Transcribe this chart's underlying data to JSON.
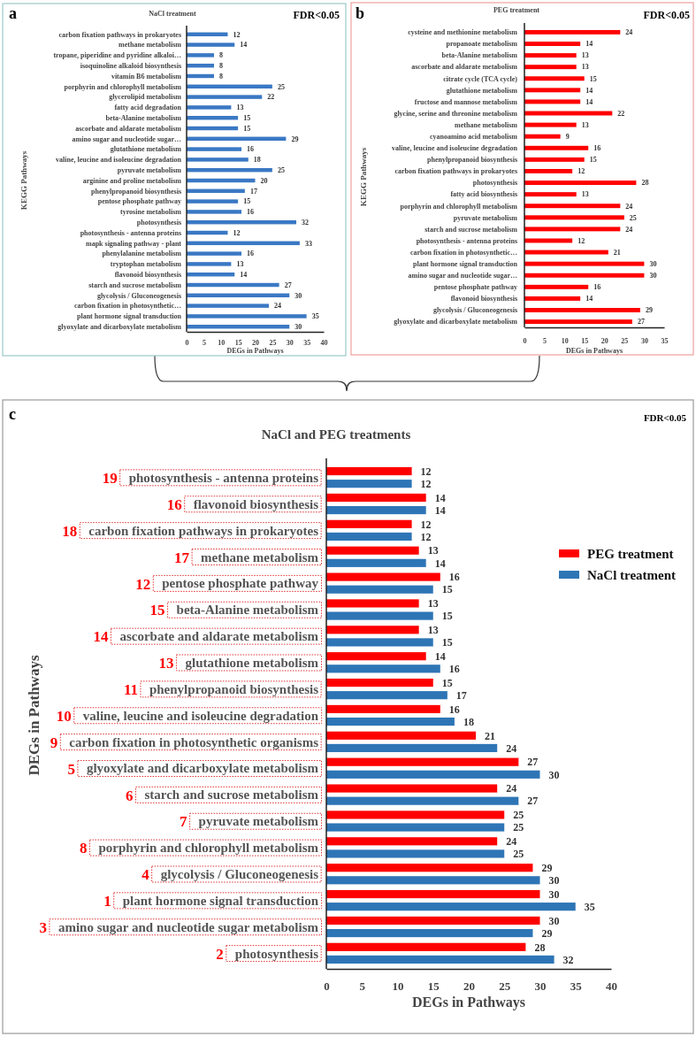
{
  "chart_data": [
    {
      "type": "bar",
      "orientation": "horizontal",
      "title": "NaCl treatment",
      "xlabel": "DEGs in Pathways",
      "ylabel": "KEGG Pathways",
      "annotations": [
        "a",
        "FDR<0.05"
      ],
      "categories": [
        "carbon fixation pathways in prokaryotes",
        "methane metabolism",
        "tropane, piperidine and pyridine alkaloi…",
        "isoquinoline alkaloid biosynthesis",
        "vitamin B6 metabolism",
        "porphyrin and chlorophyll metabolism",
        "glycerolipid metabolism",
        "fatty acid degradation",
        "beta-Alanine metabolism",
        "ascorbate and aldarate metabolism",
        "amino sugar and nucleotide sugar…",
        "glutathione metabolism",
        "valine, leucine and isoleucine degradation",
        "pyruvate metabolism",
        "arginine and proline metabolism",
        "phenylpropanoid biosynthesis",
        "pentose phosphate pathway",
        "tyrosine metabolism",
        "photosynthesis",
        "photosynthesis - antenna proteins",
        "mapk signaling pathway - plant",
        "phenylalanine metabolism",
        "tryptophan metabolism",
        "flavonoid biosynthesis",
        "starch and sucrose metabolism",
        "glycolysis / Gluconeogenesis",
        "carbon fixation in photosynthetic…",
        "plant hormone signal transduction",
        "glyoxylate and dicarboxylate metabolism"
      ],
      "series": [
        {
          "color": "#3a78c4",
          "values": [
            12,
            14,
            8,
            8,
            8,
            25,
            22,
            13,
            15,
            15,
            29,
            16,
            18,
            25,
            20,
            17,
            15,
            16,
            32,
            12,
            33,
            16,
            13,
            14,
            27,
            30,
            24,
            35,
            30
          ]
        }
      ],
      "xlim": [
        0,
        40
      ],
      "xticks": [
        0,
        5,
        10,
        15,
        20,
        25,
        30,
        35,
        40
      ],
      "data_labels": true
    },
    {
      "type": "bar",
      "orientation": "horizontal",
      "title": "PEG treatment",
      "xlabel": "DEGs in Pathways",
      "ylabel": "KEGG Pathways",
      "annotations": [
        "b",
        "FDR<0.05"
      ],
      "categories": [
        "cysteine and methionine metabolism",
        "propanoate metabolism",
        "beta-Alanine metabolism",
        "ascorbate and aldarate metabolism",
        "citrate cycle (TCA cycle)",
        "glutathione metabolism",
        "fructose and mannose metabolism",
        "glycine, serine and threonine metabolism",
        "methane metabolism",
        "cyanoamino acid metabolism",
        "valine, leucine and isoleucine degradation",
        "phenylpropanoid biosynthesis",
        "carbon fixation pathways in prokaryotes",
        "photosynthesis",
        "fatty acid biosynthesis",
        "porphyrin and chlorophyll metabolism",
        "pyruvate metabolism",
        "starch and sucrose metabolism",
        "photosynthesis - antenna proteins",
        "carbon fixation in photosynthetic…",
        "plant hormone signal transduction",
        "amino sugar and nucleotide sugar…",
        "pentose phosphate pathway",
        "flavonoid biosynthesis",
        "glycolysis / Gluconeogenesis",
        "glyoxylate and dicarboxylate metabolism"
      ],
      "series": [
        {
          "color": "#ff0000",
          "values": [
            24,
            14,
            13,
            13,
            15,
            14,
            14,
            22,
            13,
            9,
            16,
            15,
            12,
            28,
            13,
            24,
            25,
            24,
            12,
            21,
            30,
            30,
            16,
            14,
            29,
            27
          ]
        }
      ],
      "xlim": [
        0,
        35
      ],
      "xticks": [
        0,
        5,
        10,
        15,
        20,
        25,
        30,
        35
      ],
      "data_labels": true
    },
    {
      "type": "bar",
      "orientation": "horizontal",
      "title": "NaCl and PEG treatments",
      "xlabel": "DEGs in Pathways",
      "ylabel": "DEGs in Pathways",
      "legend": "right",
      "annotations": [
        "c",
        "FDR<0.05",
        "19",
        "16",
        "18",
        "17",
        "12",
        "15",
        "14",
        "13",
        "11",
        "10",
        "9",
        "5",
        "6",
        "7",
        "8",
        "4",
        "1",
        "3",
        "2"
      ],
      "categories": [
        "photosynthesis - antenna proteins",
        "flavonoid biosynthesis",
        "carbon fixation pathways in prokaryotes",
        "methane metabolism",
        "pentose phosphate pathway",
        "beta-Alanine metabolism",
        "ascorbate and aldarate metabolism",
        "glutathione metabolism",
        "phenylpropanoid biosynthesis",
        "valine, leucine and isoleucine degradation",
        "carbon fixation in photosynthetic organisms",
        "glyoxylate and dicarboxylate metabolism",
        "starch and sucrose metabolism",
        "pyruvate metabolism",
        "porphyrin and chlorophyll metabolism",
        "glycolysis / Gluconeogenesis",
        "plant hormone signal transduction",
        "amino sugar and nucleotide sugar metabolism",
        "photosynthesis"
      ],
      "series": [
        {
          "name": "PEG treatment",
          "color": "#ff0000",
          "values": [
            12,
            14,
            12,
            13,
            16,
            13,
            13,
            14,
            15,
            16,
            21,
            27,
            24,
            25,
            24,
            29,
            30,
            30,
            28
          ]
        },
        {
          "name": "NaCl treatment",
          "color": "#2e75b6",
          "values": [
            12,
            14,
            12,
            14,
            15,
            15,
            15,
            16,
            17,
            18,
            24,
            30,
            27,
            25,
            25,
            30,
            35,
            29,
            32
          ]
        }
      ],
      "xlim": [
        0,
        40
      ],
      "xticks": [
        0,
        5,
        10,
        15,
        20,
        25,
        30,
        35,
        40
      ],
      "data_labels": true
    }
  ]
}
